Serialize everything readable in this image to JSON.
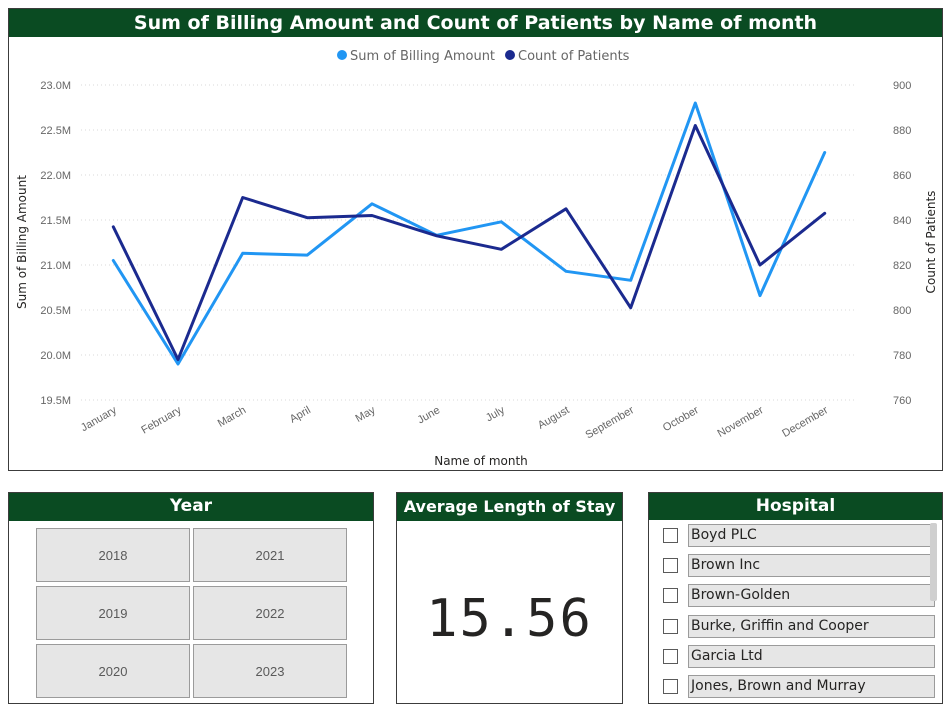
{
  "chart_panel": {
    "title": "Sum of Billing Amount and Count of Patients by Name of month"
  },
  "kpi": {
    "title": "Average Length of Stay",
    "value": "15.56"
  },
  "year_slicer": {
    "title": "Year",
    "years": [
      "2018",
      "2021",
      "2019",
      "2022",
      "2020",
      "2023"
    ]
  },
  "hospital_slicer": {
    "title": "Hospital",
    "items": [
      "Boyd PLC",
      "Brown Inc",
      "Brown-Golden",
      "Burke, Griffin and Cooper",
      "Garcia Ltd",
      "Jones, Brown and Murray"
    ]
  },
  "colors": {
    "header_bg": "#0a4b22",
    "billing_series": "#2196f3",
    "patients_series": "#1b2a8f"
  },
  "chart_data": {
    "type": "line",
    "title": "Sum of Billing Amount and Count of Patients by Name of month",
    "xlabel": "Name of month",
    "ylabel": "Sum of Billing Amount",
    "y2label": "Count of Patients",
    "categories": [
      "January",
      "February",
      "March",
      "April",
      "May",
      "June",
      "July",
      "August",
      "September",
      "October",
      "November",
      "December"
    ],
    "series": [
      {
        "name": "Sum of Billing Amount",
        "axis": "left",
        "color": "#2196f3",
        "values": [
          21.05,
          19.9,
          21.13,
          21.11,
          21.68,
          21.33,
          21.48,
          20.93,
          20.83,
          22.8,
          20.66,
          22.25
        ]
      },
      {
        "name": "Count of Patients",
        "axis": "right",
        "color": "#1b2a8f",
        "values": [
          837,
          778,
          850,
          841,
          842,
          833,
          827,
          845,
          801,
          882,
          820,
          843
        ]
      }
    ],
    "ylim": [
      19.5,
      23.0
    ],
    "y2lim": [
      760,
      900
    ],
    "yticks": [
      "19.5M",
      "20.0M",
      "20.5M",
      "21.0M",
      "21.5M",
      "22.0M",
      "22.5M",
      "23.0M"
    ],
    "y2ticks": [
      "760",
      "780",
      "800",
      "820",
      "840",
      "860",
      "880",
      "900"
    ],
    "grid": true,
    "legend": "top-center"
  }
}
